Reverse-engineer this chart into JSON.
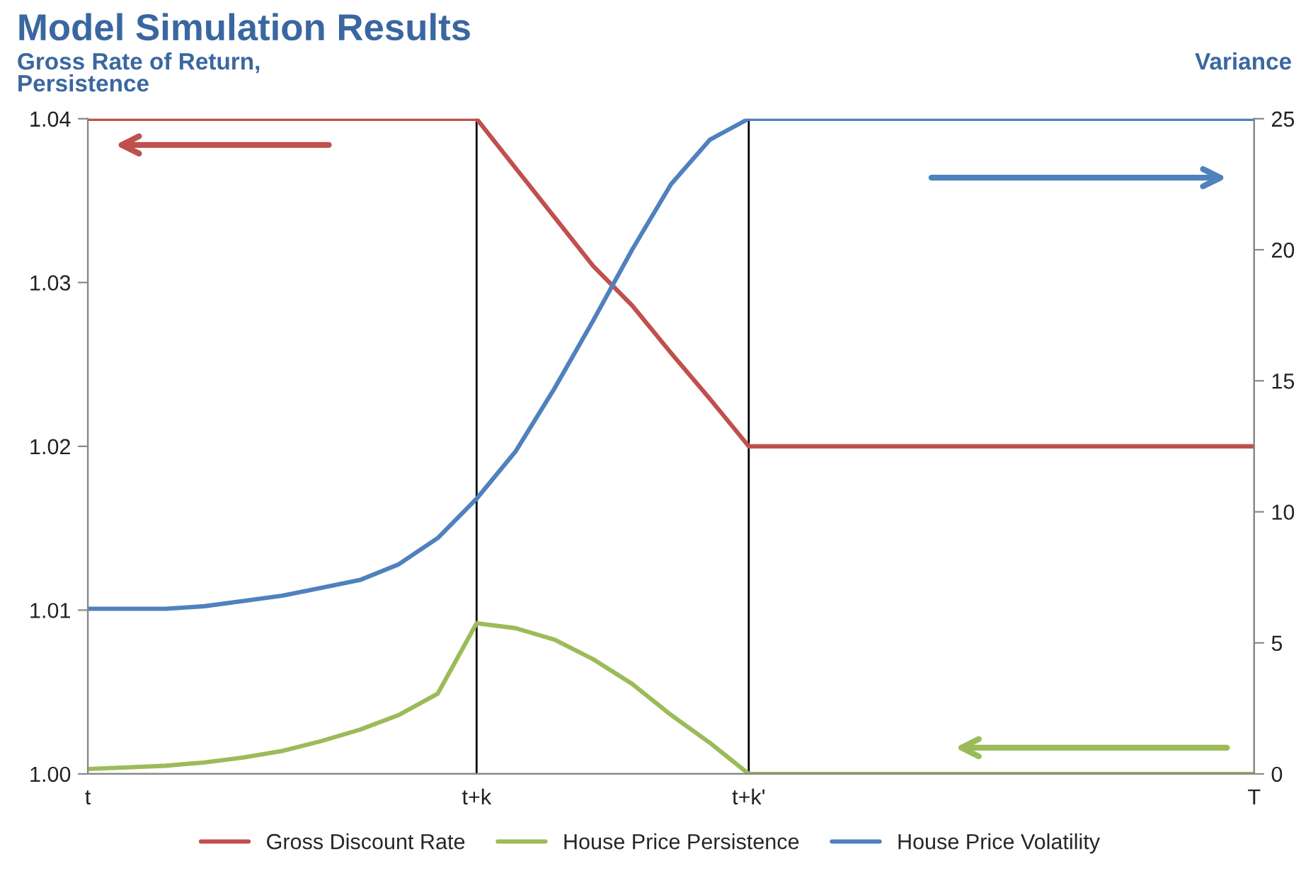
{
  "chart_data": {
    "type": "line",
    "title": "Model Simulation Results",
    "ylabel": "Gross Rate of Return,\nPersistence",
    "y2label": "Variance",
    "categories": [
      "t",
      null,
      null,
      null,
      null,
      null,
      null,
      null,
      null,
      null,
      "t+k",
      null,
      null,
      null,
      null,
      null,
      null,
      "t+k'",
      null,
      null,
      null,
      null,
      null,
      null,
      null,
      null,
      null,
      null,
      null,
      null,
      "T"
    ],
    "ylim": [
      1.0,
      1.04
    ],
    "yticks": [
      {
        "value": 1.0,
        "label": "1.00"
      },
      {
        "value": 1.01,
        "label": "1.01"
      },
      {
        "value": 1.02,
        "label": "1.02"
      },
      {
        "value": 1.03,
        "label": "1.03"
      },
      {
        "value": 1.04,
        "label": "1.04"
      }
    ],
    "y2lim": [
      0,
      25
    ],
    "y2ticks": [
      0,
      5,
      10,
      15,
      20,
      25
    ],
    "series": [
      {
        "name": "Gross Discount Rate",
        "color": "#c0504d",
        "values": [
          1.04,
          1.04,
          1.04,
          1.04,
          1.04,
          1.04,
          1.04,
          1.04,
          1.04,
          1.04,
          1.04,
          1.037,
          1.034,
          1.031,
          1.0286,
          1.0257,
          1.0229,
          1.02,
          1.02,
          1.02,
          1.02,
          1.02,
          1.02,
          1.02,
          1.02,
          1.02,
          1.02,
          1.02,
          1.02,
          1.02,
          1.02
        ]
      },
      {
        "name": "House Price Persistence",
        "color": "#9bbb59",
        "values": [
          1.0003,
          1.0004,
          1.0005,
          1.0007,
          1.001,
          1.0014,
          1.002,
          1.0027,
          1.0036,
          1.0049,
          1.0092,
          1.0089,
          1.0082,
          1.007,
          1.0055,
          1.0036,
          1.0019,
          1.0,
          1.0,
          1.0,
          1.0,
          1.0,
          1.0,
          1.0,
          1.0,
          1.0,
          1.0,
          1.0,
          1.0,
          1.0,
          1.0
        ]
      },
      {
        "name": "House Price Volatility",
        "color": "#4f81bd",
        "axis": "y2",
        "values": [
          6.3,
          6.3,
          6.3,
          6.4,
          6.6,
          6.8,
          7.1,
          7.4,
          8.0,
          9.0,
          10.5,
          12.3,
          14.7,
          17.3,
          20.0,
          22.5,
          24.2,
          25,
          25,
          25,
          25,
          25,
          25,
          25,
          25,
          25,
          25,
          25,
          25,
          25,
          25
        ]
      }
    ],
    "ref_lines": [
      {
        "axis": "x",
        "value": "t+k",
        "color": "#000000"
      },
      {
        "axis": "x",
        "value": "t+k'",
        "color": "#000000"
      }
    ],
    "legend": "bottom",
    "grid": false
  }
}
